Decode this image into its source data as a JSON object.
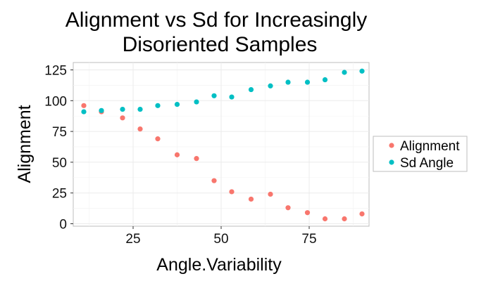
{
  "chart_data": {
    "type": "scatter",
    "title": [
      "Alignment vs Sd for Increasingly",
      "Disoriented Samples"
    ],
    "xlabel": "Angle.Variability",
    "ylabel": "Alignment",
    "xlim": [
      8,
      92
    ],
    "ylim": [
      -2,
      131
    ],
    "x_ticks": [
      25,
      50,
      75
    ],
    "y_ticks": [
      0,
      25,
      50,
      75,
      100,
      125
    ],
    "x_tick_labels": [
      "25",
      "50",
      "75"
    ],
    "y_tick_labels": [
      "0",
      "25",
      "50",
      "75",
      "100",
      "125"
    ],
    "grid": true,
    "legend_position": "right",
    "series": [
      {
        "name": "Alignment",
        "color": "#f8766d",
        "x": [
          11,
          16,
          22,
          27,
          32,
          37.5,
          43,
          48,
          53,
          58.5,
          64,
          69,
          74.5,
          79.5,
          85,
          90
        ],
        "y": [
          96,
          91,
          86,
          77,
          69,
          56,
          53,
          35,
          26,
          20,
          24,
          13,
          9,
          4,
          4,
          8
        ]
      },
      {
        "name": "Sd Angle",
        "color": "#00bfc4",
        "x": [
          11,
          16,
          22,
          27,
          32,
          37.5,
          43,
          48,
          53,
          58.5,
          64,
          69,
          74.5,
          79.5,
          85,
          90
        ],
        "y": [
          91,
          92,
          93,
          93,
          96,
          97,
          99,
          104,
          103,
          109,
          112,
          115,
          115,
          117,
          123,
          124
        ]
      }
    ]
  }
}
